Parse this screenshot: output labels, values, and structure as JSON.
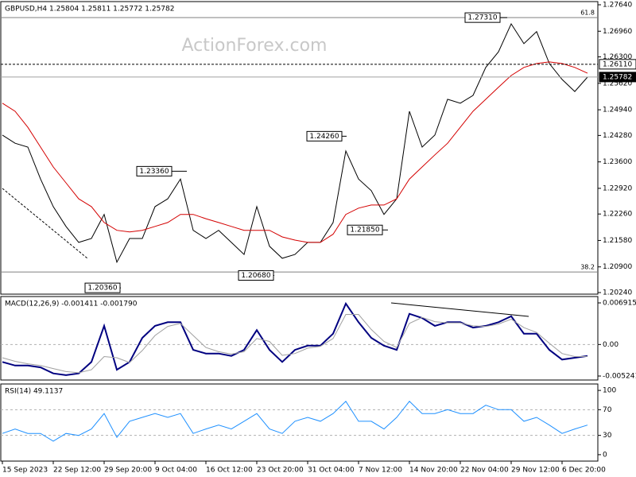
{
  "chart_data": [
    {
      "type": "line",
      "title": "GBPUSD,H4 1.25804 1.25811 1.25772 1.25782",
      "watermark": "ActionForex.com",
      "x": [
        0,
        4,
        8,
        12,
        16,
        20,
        24,
        28,
        32,
        36,
        40,
        44,
        48,
        52,
        56,
        60,
        64,
        68,
        72,
        76,
        80,
        84,
        88,
        92,
        96,
        100,
        104,
        108,
        112,
        116,
        120,
        124,
        128,
        132,
        136,
        140,
        144,
        148,
        152,
        156,
        160,
        164,
        168,
        172,
        176,
        180,
        184
      ],
      "xlim": [
        0,
        187
      ],
      "series": [
        {
          "color": "#000000",
          "values": [
            1.2429,
            1.2408,
            1.2398,
            1.2316,
            1.2245,
            1.2194,
            1.2153,
            1.2163,
            1.2225,
            1.2102,
            1.2163,
            1.2163,
            1.2245,
            1.2265,
            1.2316,
            1.2184,
            1.2163,
            1.2184,
            1.2153,
            1.2122,
            1.2245,
            1.2143,
            1.2112,
            1.2122,
            1.2153,
            1.2153,
            1.2204,
            1.2388,
            1.2316,
            1.2286,
            1.2225,
            1.2265,
            1.249,
            1.2398,
            1.2429,
            1.2521,
            1.2511,
            1.2531,
            1.2603,
            1.2643,
            1.2715,
            1.2664,
            1.2695,
            1.2613,
            1.2572,
            1.2541,
            1.2578
          ]
        },
        {
          "color": "#d40000",
          "values": [
            1.2511,
            1.249,
            1.2449,
            1.2398,
            1.2347,
            1.2306,
            1.2265,
            1.2245,
            1.2204,
            1.2184,
            1.218,
            1.2184,
            1.2194,
            1.2204,
            1.2225,
            1.2225,
            1.2214,
            1.2204,
            1.2194,
            1.2184,
            1.2184,
            1.2184,
            1.2167,
            1.2159,
            1.2153,
            1.2153,
            1.2174,
            1.2225,
            1.2241,
            1.2249,
            1.2249,
            1.2265,
            1.2316,
            1.2347,
            1.2378,
            1.2408,
            1.2449,
            1.249,
            1.2521,
            1.2552,
            1.2582,
            1.2603,
            1.2613,
            1.2617,
            1.2613,
            1.2603,
            1.2588
          ]
        }
      ],
      "ylim": [
        1.20199,
        1.27722
      ],
      "yticks": [
        {
          "value": 1.2764,
          "label": "1.27640"
        },
        {
          "value": 1.2696,
          "label": "1.26960"
        },
        {
          "value": 1.263,
          "label": "1.26300"
        },
        {
          "value": 1.2562,
          "label": "1.25620"
        },
        {
          "value": 1.2494,
          "label": "1.24940"
        },
        {
          "value": 1.2428,
          "label": "1.24280"
        },
        {
          "value": 1.236,
          "label": "1.23600"
        },
        {
          "value": 1.2292,
          "label": "1.22920"
        },
        {
          "value": 1.2226,
          "label": "1.22260"
        },
        {
          "value": 1.2158,
          "label": "1.21580"
        },
        {
          "value": 1.209,
          "label": "1.20900"
        },
        {
          "value": 1.2024,
          "label": "1.20240"
        }
      ],
      "fib_levels": [
        {
          "label": "61.8",
          "value": 1.2731
        },
        {
          "label": "38.2",
          "value": 1.2077
        }
      ],
      "price_lines": [
        {
          "label": "1.26110",
          "value": 1.2611,
          "style": "dotted",
          "box_color": "#ffffff"
        },
        {
          "label": "1.25782",
          "value": 1.25782,
          "style": "solid",
          "box_color": "#000000"
        }
      ],
      "annotations": [
        {
          "label": "1.27310",
          "value": 1.2731
        },
        {
          "label": "1.24260",
          "value": 1.2426
        },
        {
          "label": "1.23360",
          "value": 1.2336
        },
        {
          "label": "1.21850",
          "value": 1.2185
        },
        {
          "label": "1.20680",
          "value": 1.2068
        },
        {
          "label": "1.20360",
          "value": 1.2036
        }
      ]
    },
    {
      "type": "line",
      "title": "MACD(12,26,9) -0.001411 -0.001790",
      "x": [
        0,
        4,
        8,
        12,
        16,
        20,
        24,
        28,
        32,
        36,
        40,
        44,
        48,
        52,
        56,
        60,
        64,
        68,
        72,
        76,
        80,
        84,
        88,
        92,
        96,
        100,
        104,
        108,
        112,
        116,
        120,
        124,
        128,
        132,
        136,
        140,
        144,
        148,
        152,
        156,
        160,
        164,
        168,
        172,
        176,
        180,
        184
      ],
      "xlim": [
        0,
        187
      ],
      "series": [
        {
          "color": "#000080",
          "width": 2,
          "values": [
            -0.0029,
            -0.0035,
            -0.0035,
            -0.0038,
            -0.0048,
            -0.0051,
            -0.0048,
            -0.0029,
            0.0031,
            -0.0042,
            -0.0029,
            0.0011,
            0.0031,
            0.0037,
            0.0037,
            -0.0009,
            -0.0015,
            -0.0015,
            -0.0019,
            -0.0009,
            0.0024,
            -0.0009,
            -0.0029,
            -0.0009,
            -0.0002,
            -0.0002,
            0.0018,
            0.0068,
            0.0037,
            0.0011,
            -0.0002,
            -0.0009,
            0.0051,
            0.0044,
            0.0031,
            0.0037,
            0.0037,
            0.0028,
            0.0031,
            0.0037,
            0.0047,
            0.0018,
            0.0018,
            -0.0009,
            -0.0025,
            -0.0022,
            -0.0019
          ]
        },
        {
          "color": "#a0a0a0",
          "width": 1,
          "values": [
            -0.0022,
            -0.0028,
            -0.0032,
            -0.0035,
            -0.004,
            -0.0045,
            -0.0047,
            -0.0042,
            -0.002,
            -0.0022,
            -0.003,
            -0.001,
            0.0015,
            0.003,
            0.0035,
            0.0015,
            -0.0005,
            -0.0012,
            -0.0016,
            -0.0012,
            0.001,
            0.0005,
            -0.0018,
            -0.0015,
            -0.0006,
            -0.0003,
            0.001,
            0.005,
            0.005,
            0.0025,
            0.0005,
            -0.0005,
            0.0035,
            0.0045,
            0.0038,
            0.0036,
            0.0036,
            0.0031,
            0.003,
            0.0034,
            0.0042,
            0.0028,
            0.002,
            0.0002,
            -0.0015,
            -0.002,
            -0.002
          ]
        }
      ],
      "ylim": [
        -0.005902,
        0.007972
      ],
      "yticks": [
        0.006915,
        {
          "value": 0,
          "label": "0.00"
        },
        -0.005241
      ],
      "levels": [
        0
      ]
    },
    {
      "type": "line",
      "title": "RSI(14) 49.1137",
      "x": [
        0,
        4,
        8,
        12,
        16,
        20,
        24,
        28,
        32,
        36,
        40,
        44,
        48,
        52,
        56,
        60,
        64,
        68,
        72,
        76,
        80,
        84,
        88,
        92,
        96,
        100,
        104,
        108,
        112,
        116,
        120,
        124,
        128,
        132,
        136,
        140,
        144,
        148,
        152,
        156,
        160,
        164,
        168,
        172,
        176,
        180,
        184
      ],
      "xlim": [
        0,
        187
      ],
      "series": [
        {
          "color": "#1e90ff",
          "width": 1,
          "values": [
            33,
            40,
            33,
            33,
            21,
            33,
            30,
            40,
            64,
            27,
            52,
            58,
            64,
            58,
            64,
            33,
            40,
            46,
            40,
            52,
            64,
            40,
            33,
            52,
            58,
            52,
            64,
            83,
            52,
            52,
            40,
            58,
            83,
            64,
            64,
            70,
            64,
            64,
            77,
            70,
            70,
            52,
            58,
            46,
            33,
            40,
            46
          ]
        }
      ],
      "ylim": [
        -10,
        110
      ],
      "yticks": [
        100,
        70,
        30,
        0
      ],
      "levels": [
        70,
        30
      ],
      "xticks": [
        {
          "value": 0,
          "label": "15 Sep 2023"
        },
        {
          "value": 16,
          "label": "22 Sep 12:00"
        },
        {
          "value": 32,
          "label": "29 Sep 20:00"
        },
        {
          "value": 48,
          "label": "9 Oct 04:00"
        },
        {
          "value": 64,
          "label": "16 Oct 12:00"
        },
        {
          "value": 80,
          "label": "23 Oct 20:00"
        },
        {
          "value": 96,
          "label": "31 Oct 04:00"
        },
        {
          "value": 112,
          "label": "7 Nov 12:00"
        },
        {
          "value": 128,
          "label": "14 Nov 20:00"
        },
        {
          "value": 144,
          "label": "22 Nov 04:00"
        },
        {
          "value": 160,
          "label": "29 Nov 12:00"
        },
        {
          "value": 176,
          "label": "6 Dec 20:00"
        }
      ]
    }
  ]
}
